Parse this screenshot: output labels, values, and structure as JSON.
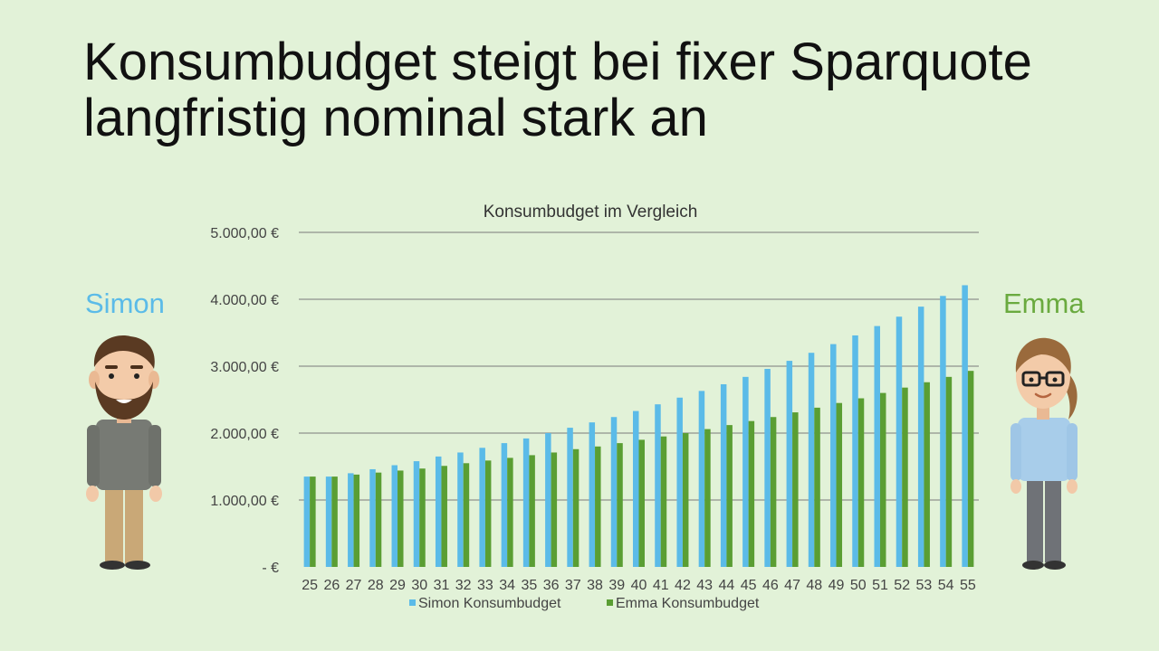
{
  "slide": {
    "title": "Konsumbudget steigt bei fixer Sparquote langfristig nominal stark an",
    "left_person": "Simon",
    "right_person": "Emma"
  },
  "colors": {
    "background": "#e2f2d8",
    "simon": "#5bbbe8",
    "emma": "#5a9e33",
    "emma_label": "#6aaa3f",
    "grid": "#7a7a7a",
    "axis_text": "#444444"
  },
  "icons": [
    "man-avatar-icon",
    "woman-avatar-icon"
  ],
  "chart_data": {
    "type": "bar",
    "title": "Konsumbudget im Vergleich",
    "xlabel": "",
    "ylabel": "",
    "ylim": [
      0,
      5000
    ],
    "grid": true,
    "legend_position": "bottom",
    "y_ticks": [
      {
        "value": 0,
        "label": "-   €"
      },
      {
        "value": 1000,
        "label": "1.000,00 €"
      },
      {
        "value": 2000,
        "label": "2.000,00 €"
      },
      {
        "value": 3000,
        "label": "3.000,00 €"
      },
      {
        "value": 4000,
        "label": "4.000,00 €"
      },
      {
        "value": 5000,
        "label": "5.000,00 €"
      }
    ],
    "categories": [
      "25",
      "26",
      "27",
      "28",
      "29",
      "30",
      "31",
      "32",
      "33",
      "34",
      "35",
      "36",
      "37",
      "38",
      "39",
      "40",
      "41",
      "42",
      "43",
      "44",
      "45",
      "46",
      "47",
      "48",
      "49",
      "50",
      "51",
      "52",
      "53",
      "54",
      "55"
    ],
    "series": [
      {
        "name": "Simon Konsumbudget",
        "color": "#5bbbe8",
        "values": [
          1350,
          1350,
          1400,
          1460,
          1520,
          1580,
          1650,
          1710,
          1780,
          1850,
          1920,
          2000,
          2080,
          2160,
          2240,
          2330,
          2430,
          2530,
          2630,
          2730,
          2840,
          2960,
          3080,
          3200,
          3330,
          3460,
          3600,
          3740,
          3890,
          4050,
          4210
        ]
      },
      {
        "name": "Emma Konsumbudget",
        "color": "#5a9e33",
        "values": [
          1350,
          1350,
          1380,
          1410,
          1440,
          1470,
          1510,
          1550,
          1590,
          1630,
          1670,
          1710,
          1760,
          1800,
          1850,
          1900,
          1950,
          2000,
          2060,
          2120,
          2180,
          2240,
          2310,
          2380,
          2450,
          2520,
          2600,
          2680,
          2760,
          2840,
          2930
        ]
      }
    ]
  }
}
